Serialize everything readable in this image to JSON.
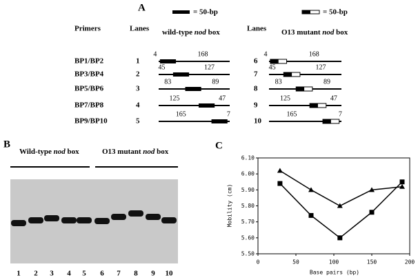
{
  "panel_a": {
    "label": "A",
    "legend_wt": "= 50-bp",
    "legend_mut": "= 50-bp",
    "primers_header": "Primers",
    "lanes_header_wt": "Lanes",
    "lanes_header_mut": "Lanes",
    "wt_title": [
      "wild-type ",
      "nod",
      " box"
    ],
    "mut_title": [
      "O13 mutant ",
      "nod",
      " box"
    ],
    "rows": [
      {
        "primers": "BP1/BP2",
        "lane_wt": "1",
        "lane_mut": "6",
        "left": "4",
        "right": "168"
      },
      {
        "primers": "BP3/BP4",
        "lane_wt": "2",
        "lane_mut": "7",
        "left": "45",
        "right": "127"
      },
      {
        "primers": "BP5/BP6",
        "lane_wt": "3",
        "lane_mut": "8",
        "left": "83",
        "right": "89"
      },
      {
        "primers": "BP7/BP8",
        "lane_wt": "4",
        "lane_mut": "9",
        "left": "125",
        "right": "47"
      },
      {
        "primers": "BP9/BP10",
        "lane_wt": "5",
        "lane_mut": "10",
        "left": "165",
        "right": "7"
      }
    ]
  },
  "panel_b": {
    "label": "B",
    "wt_title": [
      "Wild-type ",
      "nod",
      " box"
    ],
    "mut_title": [
      "O13 mutant ",
      "nod",
      " box"
    ],
    "lanes": [
      "1",
      "2",
      "3",
      "4",
      "5",
      "6",
      "7",
      "8",
      "9",
      "10"
    ]
  },
  "panel_c": {
    "label": "C"
  },
  "chart_data": {
    "type": "line",
    "xlabel": "Base pairs (bp)",
    "ylabel": "Mobility (cm)",
    "x": [
      29,
      70,
      108,
      150,
      190
    ],
    "series": [
      {
        "marker": "square",
        "color": "#000000",
        "values": [
          5.94,
          5.74,
          5.6,
          5.76,
          5.95
        ]
      },
      {
        "marker": "triangle",
        "color": "#000000",
        "values": [
          6.02,
          5.9,
          5.8,
          5.9,
          5.92
        ]
      }
    ],
    "xlim": [
      0,
      200
    ],
    "xticks": [
      0,
      50,
      100,
      150,
      200
    ],
    "ylim": [
      5.5,
      6.1
    ],
    "yticks": [
      {
        "value": 5.5,
        "label": "5.50"
      },
      {
        "value": 5.6,
        "label": "5.60"
      },
      {
        "value": 5.7,
        "label": "5.70"
      },
      {
        "value": 5.8,
        "label": "5.80"
      },
      {
        "value": 5.9,
        "label": "5.90"
      },
      {
        "value": 6.0,
        "label": "6.00"
      },
      {
        "value": 6.1,
        "label": "6.10"
      }
    ]
  }
}
